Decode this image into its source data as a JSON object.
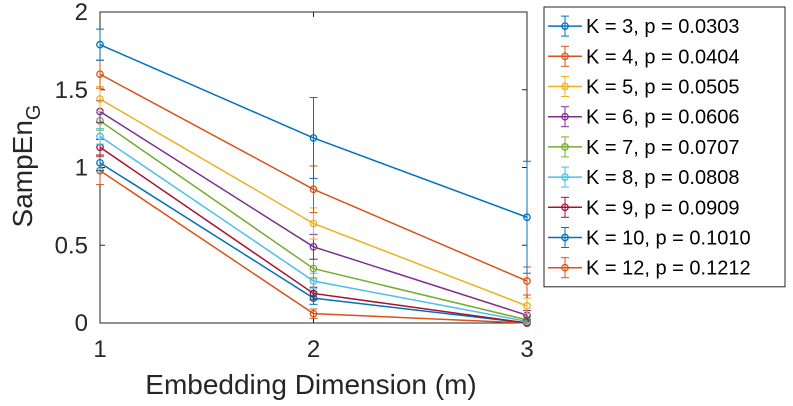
{
  "chart_data": {
    "type": "line",
    "x": [
      1,
      2,
      3
    ],
    "xlabel": "Embedding Dimension (m)",
    "ylabel_main": "SampEn",
    "ylabel_sub": "G",
    "xlim": [
      1,
      3
    ],
    "ylim": [
      0,
      2
    ],
    "xticks": [
      "1",
      "2",
      "3"
    ],
    "yticks": [
      "0",
      "0.5",
      "1",
      "1.5",
      "2"
    ],
    "legend_position": "outside-right",
    "series": [
      {
        "name": "K = 3, p = 0.0303",
        "color": "#0072BD",
        "values": [
          1.79,
          1.19,
          0.68
        ],
        "err": [
          0.1,
          0.26,
          0.36
        ]
      },
      {
        "name": "K = 4, p = 0.0404",
        "color": "#D95319",
        "values": [
          1.6,
          0.86,
          0.27
        ],
        "err": [
          0.09,
          0.15,
          0.09
        ]
      },
      {
        "name": "K = 5, p = 0.0505",
        "color": "#EDB120",
        "values": [
          1.44,
          0.64,
          0.11
        ],
        "err": [
          0.08,
          0.1,
          0.05
        ]
      },
      {
        "name": "K = 6, p = 0.0606",
        "color": "#7E2F8E",
        "values": [
          1.36,
          0.49,
          0.05
        ],
        "err": [
          0.07,
          0.08,
          0.03
        ]
      },
      {
        "name": "K = 7, p = 0.0707",
        "color": "#77AC30",
        "values": [
          1.3,
          0.35,
          0.02
        ],
        "err": [
          0.06,
          0.06,
          0.02
        ]
      },
      {
        "name": "K = 8, p = 0.0808",
        "color": "#4DBEEE",
        "values": [
          1.2,
          0.27,
          0.01
        ],
        "err": [
          0.05,
          0.05,
          0.01
        ]
      },
      {
        "name": "K = 9, p = 0.0909",
        "color": "#A2142F",
        "values": [
          1.13,
          0.19,
          0.0
        ],
        "err": [
          0.05,
          0.04,
          0.01
        ]
      },
      {
        "name": "K = 10, p = 0.1010",
        "color": "#0072BD",
        "values": [
          1.03,
          0.16,
          0.0
        ],
        "err": [
          0.05,
          0.04,
          0.01
        ]
      },
      {
        "name": "K = 12, p = 0.1212",
        "color": "#D95319",
        "values": [
          0.98,
          0.06,
          0.0
        ],
        "err": [
          0.09,
          0.03,
          0.01
        ]
      }
    ]
  }
}
